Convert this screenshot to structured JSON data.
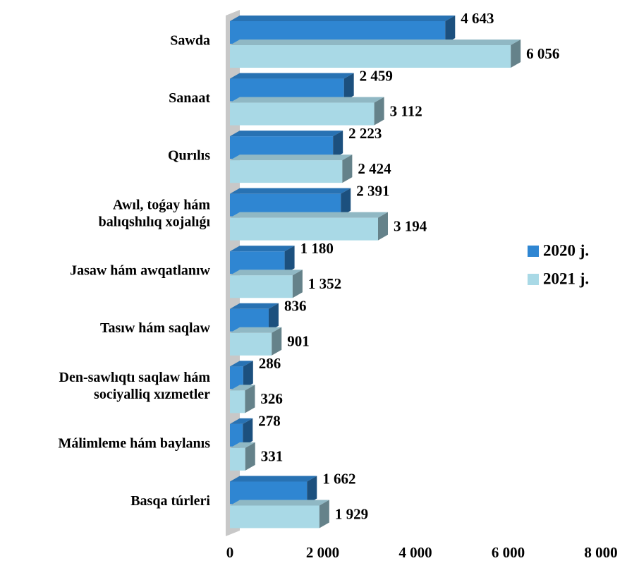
{
  "chart_data": {
    "type": "bar",
    "orientation": "horizontal",
    "categories": [
      "Sawda",
      "Sanaat",
      "Qurılıs",
      "Awıl, toǵay hám\nbalıqshılıq xojalıǵı",
      "Jasaw hám awqatlanıw",
      "Tasıw hám saqlaw",
      "Den-sawlıqtı saqlaw hám\nsociyalliq xızmetler",
      "Málimleme hám baylanıs",
      "Basqa túrleri"
    ],
    "series": [
      {
        "name": "2020 j.",
        "color": "#2f86d2",
        "values": [
          4643,
          2459,
          2223,
          2391,
          1180,
          836,
          286,
          278,
          1662
        ],
        "value_labels": [
          "4 643",
          "2 459",
          "2 223",
          "2 391",
          "1 180",
          "836",
          "286",
          "278",
          "1 662"
        ]
      },
      {
        "name": "2021 j.",
        "color": "#a9d9e6",
        "values": [
          6056,
          3112,
          2424,
          3194,
          1352,
          901,
          326,
          331,
          1929
        ],
        "value_labels": [
          "6 056",
          "3 112",
          "2 424",
          "3 194",
          "1 352",
          "901",
          "326",
          "331",
          "1 929"
        ]
      }
    ],
    "xlim": [
      0,
      8000
    ],
    "xticks": [
      0,
      {
        "value": 2000,
        "label": "2 000"
      },
      {
        "value": 4000,
        "label": "4 000"
      },
      {
        "value": 6000,
        "label": "6 000"
      },
      {
        "value": 8000,
        "label": "8 000"
      }
    ],
    "legend": "right"
  }
}
